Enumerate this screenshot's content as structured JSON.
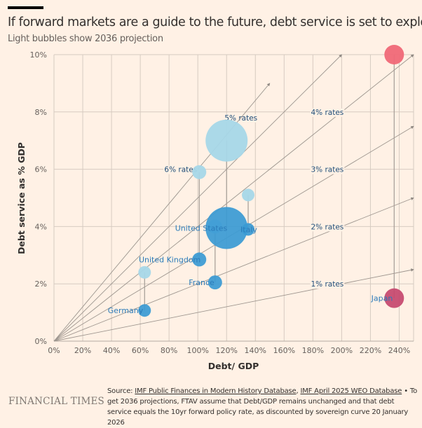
{
  "header": {
    "title": "If forward markets are a guide to the future, debt service is set to explode",
    "subtitle": "Light bubbles show 2036 projection"
  },
  "chart_data": {
    "type": "scatter",
    "title": "If forward markets are a guide to the future, debt service is set to explode",
    "subtitle": "Light bubbles show 2036 projection",
    "xlabel": "Debt/ GDP",
    "ylabel": "Debt service as % GDP",
    "xlim": [
      0,
      250
    ],
    "ylim": [
      0,
      10
    ],
    "x_ticks": [
      "0%",
      "20%",
      "40%",
      "60%",
      "80%",
      "100%",
      "120%",
      "140%",
      "160%",
      "180%",
      "200%",
      "220%",
      "240%"
    ],
    "x_tick_values": [
      0,
      20,
      40,
      60,
      80,
      100,
      120,
      140,
      160,
      180,
      200,
      220,
      240
    ],
    "y_ticks": [
      "0%",
      "2%",
      "4%",
      "6%",
      "8%",
      "10%"
    ],
    "y_tick_values": [
      0,
      2,
      4,
      6,
      8,
      10
    ],
    "grid": true,
    "rate_lines": [
      {
        "label": "1% rates",
        "rate": 1,
        "x_end": 250
      },
      {
        "label": "2% rates",
        "rate": 2,
        "x_end": 250
      },
      {
        "label": "3% rates",
        "rate": 3,
        "x_end": 250
      },
      {
        "label": "4% rates",
        "rate": 4,
        "x_end": 250
      },
      {
        "label": "5% rates",
        "rate": 5,
        "x_end": 200
      },
      {
        "label": "6% rates",
        "rate": 6,
        "x_end": 150
      }
    ],
    "series": [
      {
        "name": "Germany",
        "debt_gdp": 63,
        "debt_service": 1.07,
        "projection_2036": 2.4,
        "size": 9
      },
      {
        "name": "United Kingdom",
        "debt_gdp": 101,
        "debt_service": 2.85,
        "projection_2036": 5.9,
        "size": 10
      },
      {
        "name": "France",
        "debt_gdp": 112,
        "debt_service": 2.05,
        "projection_2036": 4.0,
        "size": 10
      },
      {
        "name": "United States",
        "debt_gdp": 120,
        "debt_service": 3.95,
        "projection_2036": 7.0,
        "size": 30
      },
      {
        "name": "Italy",
        "debt_gdp": 135,
        "debt_service": 3.9,
        "projection_2036": 5.1,
        "size": 9
      },
      {
        "name": "Japan",
        "debt_gdp": 236.5,
        "debt_service": 1.5,
        "projection_2036": 10.0,
        "size": 14
      }
    ],
    "colors": {
      "current": "#3a9ad4",
      "projection": "#a6d7e8",
      "japan_current": "#c5466e",
      "japan_projection": "#f06877"
    }
  },
  "footer": {
    "brand": "FINANCIAL TIMES",
    "source_prefix": "Source: ",
    "source_link_1": "IMF Public Finances in Modern History Database",
    "source_sep": ", ",
    "source_link_2": "IMF April 2025 WEO Database",
    "source_note": " • To get 2036 projections, FTAV assume that Debt/GDP remains unchanged and that debt service equals the 10yr forward policy rate, as discounted by sovereign curve 20 January 2026"
  }
}
